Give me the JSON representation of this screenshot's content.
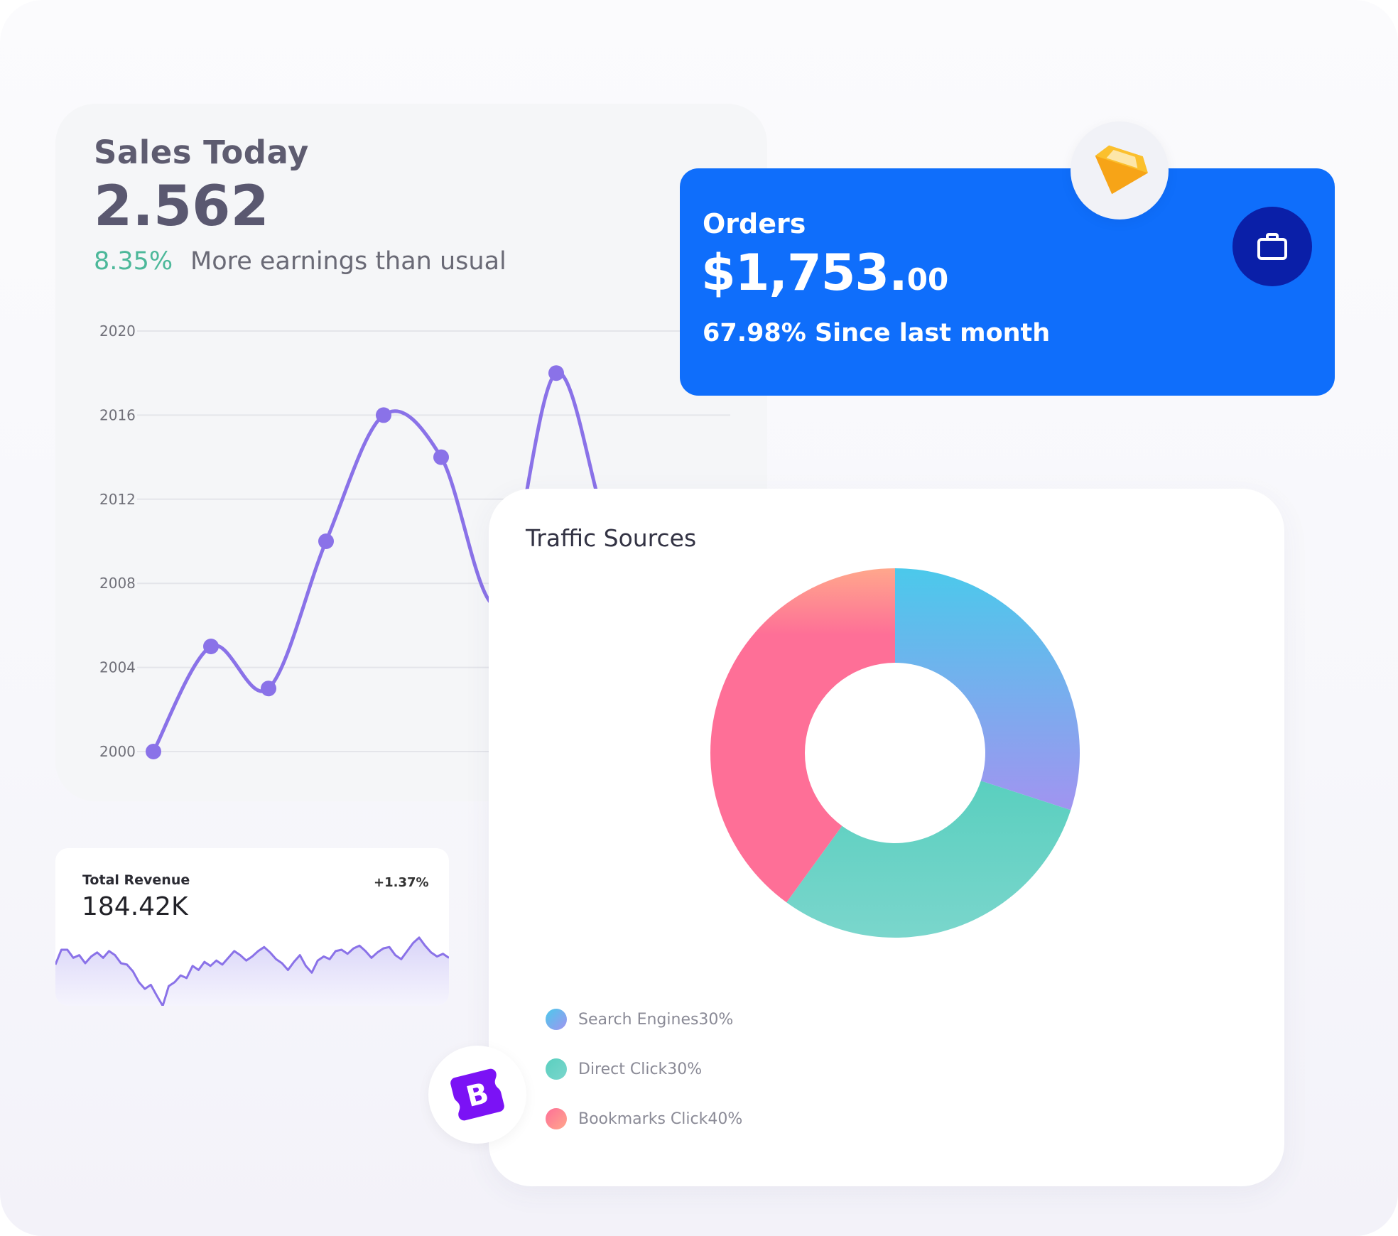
{
  "sales": {
    "title": "Sales Today",
    "value": "2.562",
    "change_pct": "8.35%",
    "note": "More earnings than usual"
  },
  "orders": {
    "title": "Orders",
    "value_main": "$1,753.",
    "value_cents": "00",
    "since": "67.98% Since last month"
  },
  "revenue": {
    "title": "Total Revenue",
    "value": "184.42K",
    "change": "+1.37%"
  },
  "traffic": {
    "title": "Traffic Sources"
  },
  "colors": {
    "primary_blue": "#0f6efb",
    "dark_blue": "#0a1fa8",
    "line_purple": "#8a72e8",
    "teal": "#5dcfbd",
    "pink": "#fe6f97",
    "sky": "#4bc9eb",
    "green_text": "#4cb89a"
  },
  "icons": {
    "orders": "briefcase-icon",
    "sketch": "sketch-diamond-icon",
    "bootstrap": "bootstrap-logo-icon"
  },
  "chart_data": [
    {
      "type": "line",
      "title": "",
      "xlabel": "",
      "ylabel": "",
      "y_ticks": [
        "2000",
        "2004",
        "2008",
        "2012",
        "2016",
        "2020"
      ],
      "ylim": [
        2000,
        2020
      ],
      "grid": true,
      "x": [
        1,
        2,
        3,
        4,
        5,
        6,
        7,
        8,
        9,
        10
      ],
      "values": [
        2000,
        2005,
        2003,
        2010,
        2016,
        2014,
        2007,
        2018,
        2010,
        2011
      ]
    },
    {
      "type": "pie",
      "title": "Traffic Sources",
      "donut": true,
      "legend_position": "bottom-left",
      "series": [
        {
          "name": "Search Engines",
          "label": "Search Engines30%",
          "value": 30,
          "color_from": "#4bc9eb",
          "color_to": "#a194f0"
        },
        {
          "name": "Direct Click",
          "label": "Direct Click30%",
          "value": 30,
          "color_from": "#5acfbf",
          "color_to": "#7ad6cc"
        },
        {
          "name": "Bookmarks Click",
          "label": "Bookmarks Click40%",
          "value": 40,
          "color_from": "#fe6f97",
          "color_to": "#ffa78c"
        }
      ]
    },
    {
      "type": "area",
      "title": "",
      "ylim": [
        0,
        100
      ],
      "values": [
        38,
        60,
        60,
        48,
        52,
        40,
        50,
        56,
        48,
        58,
        52,
        40,
        38,
        28,
        12,
        2,
        8,
        -8,
        -40,
        6,
        12,
        22,
        18,
        36,
        30,
        42,
        36,
        44,
        38,
        48,
        58,
        52,
        44,
        50,
        58,
        64,
        56,
        46,
        40,
        30,
        42,
        52,
        36,
        26,
        44,
        50,
        46,
        58,
        60,
        54,
        62,
        66,
        58,
        48,
        56,
        62,
        64,
        52,
        46,
        58,
        70,
        78,
        66,
        56,
        50,
        54,
        48
      ]
    }
  ]
}
